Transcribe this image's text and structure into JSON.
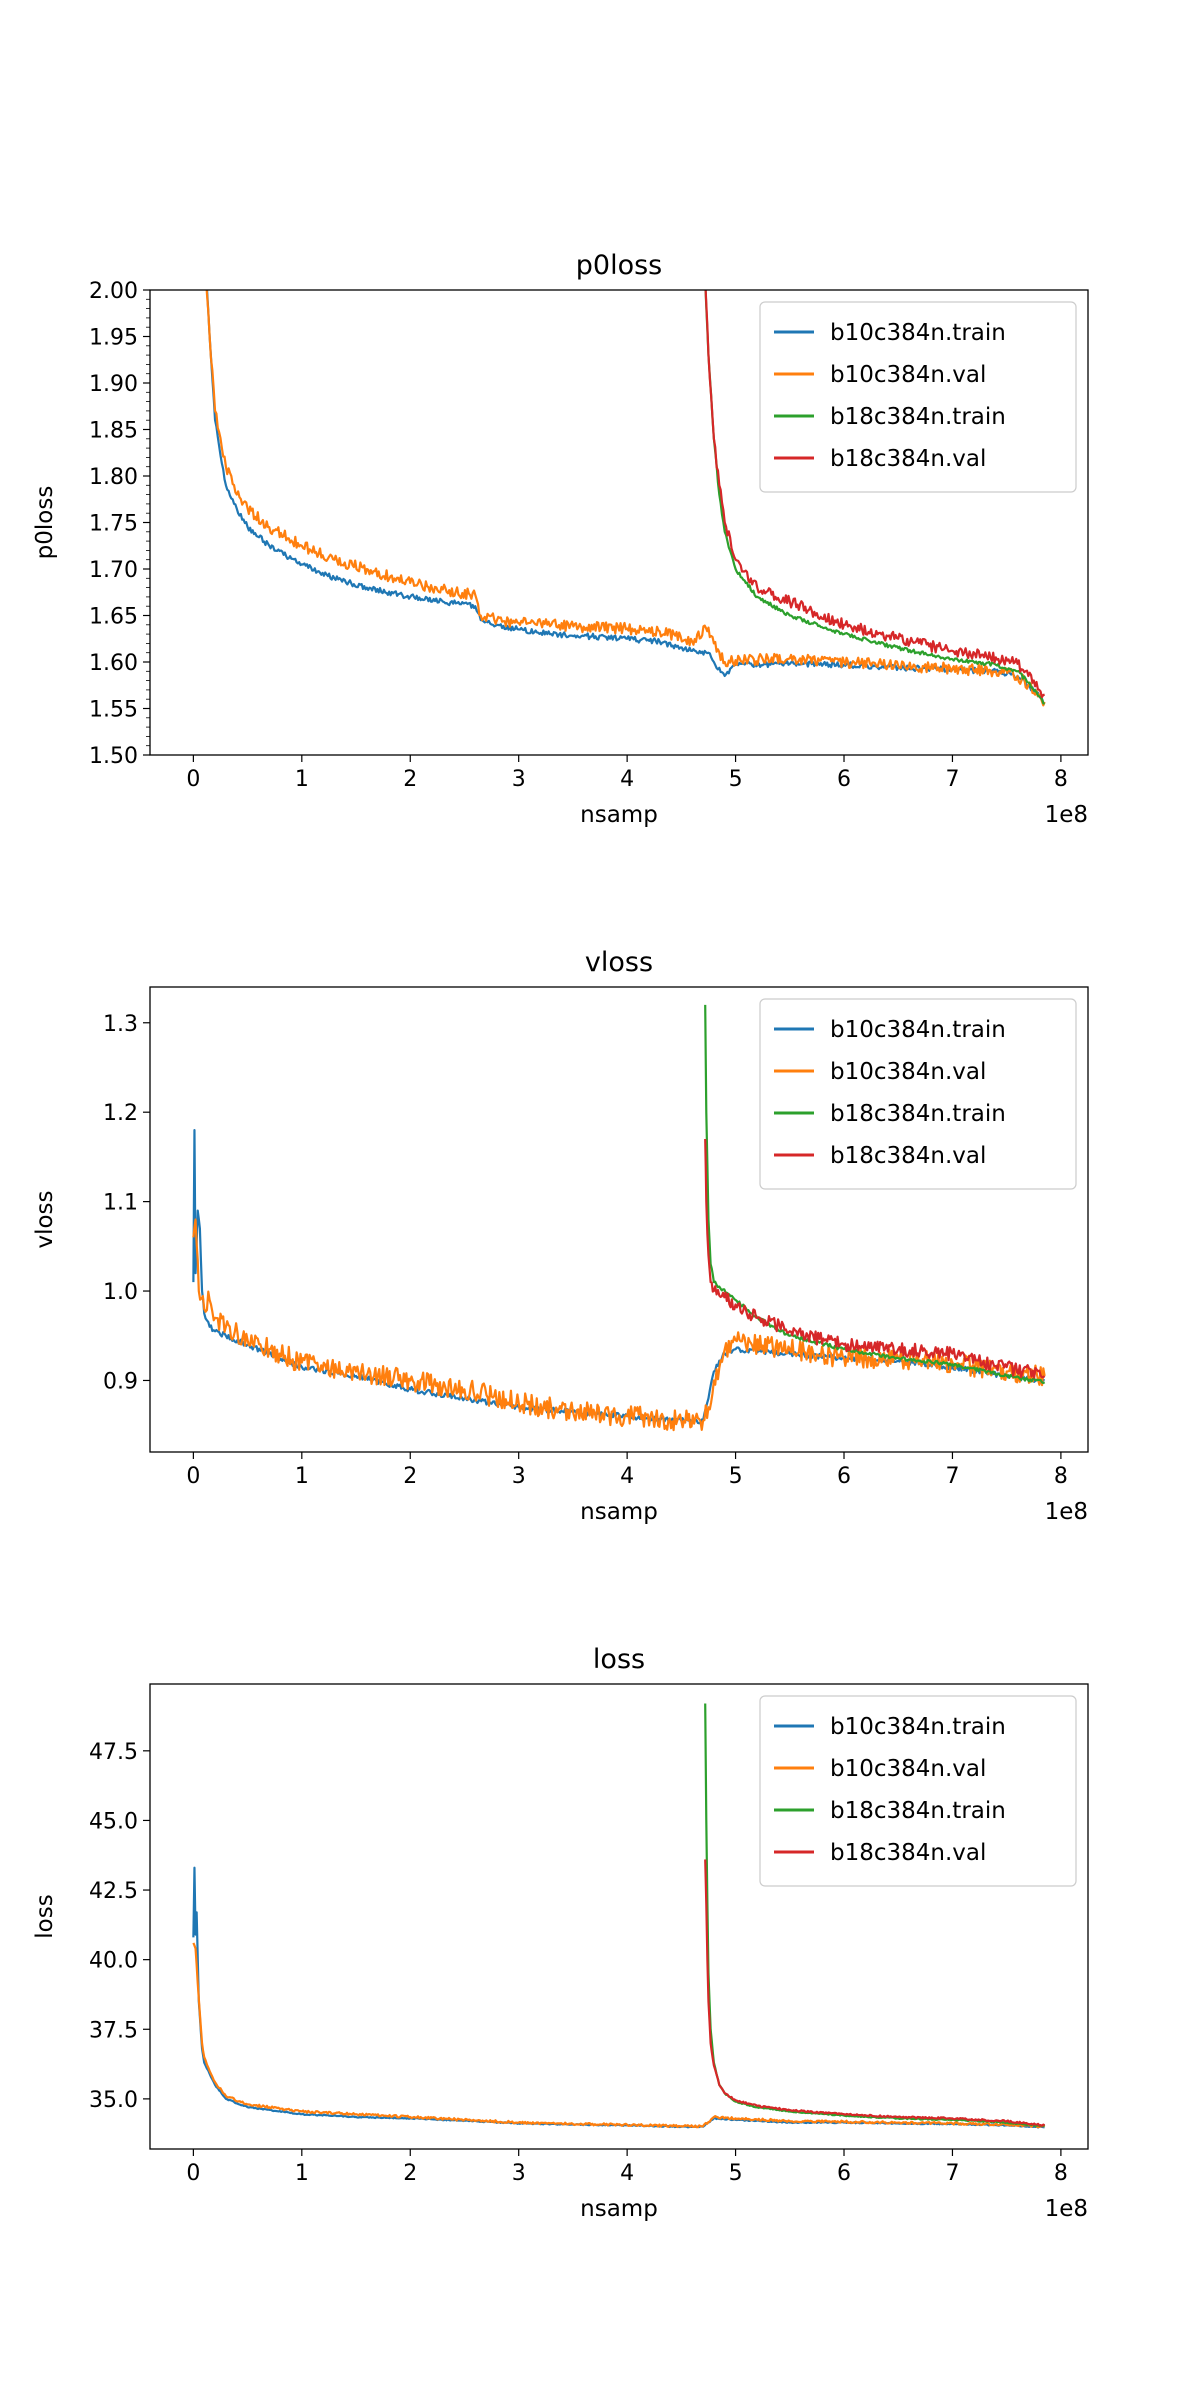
{
  "colors": {
    "b10c384n_train": "#1f77b4",
    "b10c384n_val": "#ff7f0e",
    "b18c384n_train": "#2ca02c",
    "b18c384n_val": "#d62728"
  },
  "chart_data": [
    {
      "type": "line",
      "title": "p0loss",
      "xlabel": "nsamp",
      "ylabel": "p0loss",
      "x_offset_text": "1e8",
      "xlim": [
        -0.4,
        8.25
      ],
      "ylim": [
        1.5,
        2.0
      ],
      "xticks": [
        0,
        1,
        2,
        3,
        4,
        5,
        6,
        7,
        8
      ],
      "yticks": [
        1.5,
        1.55,
        1.6,
        1.65,
        1.7,
        1.75,
        1.8,
        1.85,
        1.9,
        1.95,
        2.0
      ],
      "ytick_labels": [
        "1.50",
        "1.55",
        "1.60",
        "1.65",
        "1.70",
        "1.75",
        "1.80",
        "1.85",
        "1.90",
        "1.95",
        "2.00"
      ],
      "legend": "top-right",
      "grid": false,
      "series": [
        {
          "name": "b10c384n.train",
          "color_key": "b10c384n_train",
          "noise": 0.003,
          "x": [
            0.1,
            0.15,
            0.2,
            0.3,
            0.4,
            0.5,
            0.7,
            1.0,
            1.3,
            1.6,
            2.0,
            2.3,
            2.6,
            2.65,
            2.8,
            3.0,
            3.3,
            3.6,
            4.0,
            4.3,
            4.6,
            4.75,
            4.8,
            4.9,
            5.0,
            5.5,
            6.0,
            6.5,
            7.0,
            7.4,
            7.6,
            7.7,
            7.8,
            7.85
          ],
          "y": [
            2.05,
            1.95,
            1.86,
            1.79,
            1.765,
            1.745,
            1.725,
            1.705,
            1.69,
            1.68,
            1.67,
            1.665,
            1.66,
            1.645,
            1.64,
            1.635,
            1.63,
            1.628,
            1.625,
            1.622,
            1.612,
            1.61,
            1.6,
            1.585,
            1.597,
            1.598,
            1.597,
            1.594,
            1.592,
            1.59,
            1.585,
            1.575,
            1.563,
            1.555
          ]
        },
        {
          "name": "b10c384n.val",
          "color_key": "b10c384n_val",
          "noise": 0.006,
          "x": [
            0.1,
            0.15,
            0.2,
            0.3,
            0.4,
            0.5,
            0.7,
            1.0,
            1.3,
            1.6,
            2.0,
            2.3,
            2.6,
            2.65,
            2.8,
            3.0,
            3.3,
            3.6,
            4.0,
            4.3,
            4.6,
            4.75,
            4.8,
            4.9,
            5.0,
            5.5,
            6.0,
            6.5,
            7.0,
            7.4,
            7.6,
            7.7,
            7.8,
            7.85
          ],
          "y": [
            2.05,
            1.95,
            1.87,
            1.81,
            1.78,
            1.765,
            1.745,
            1.725,
            1.71,
            1.7,
            1.685,
            1.678,
            1.672,
            1.65,
            1.645,
            1.642,
            1.64,
            1.638,
            1.636,
            1.633,
            1.622,
            1.637,
            1.62,
            1.6,
            1.602,
            1.604,
            1.6,
            1.596,
            1.593,
            1.59,
            1.585,
            1.575,
            1.565,
            1.557
          ]
        },
        {
          "name": "b18c384n.train",
          "color_key": "b18c384n_train",
          "noise": 0.002,
          "x": [
            4.72,
            4.75,
            4.8,
            4.85,
            4.9,
            5.0,
            5.2,
            5.5,
            6.0,
            6.5,
            7.0,
            7.4,
            7.6,
            7.7,
            7.8,
            7.85
          ],
          "y": [
            2.01,
            1.93,
            1.84,
            1.78,
            1.74,
            1.7,
            1.67,
            1.65,
            1.63,
            1.615,
            1.603,
            1.597,
            1.59,
            1.578,
            1.563,
            1.555
          ]
        },
        {
          "name": "b18c384n.val",
          "color_key": "b18c384n_val",
          "noise": 0.006,
          "x": [
            4.72,
            4.75,
            4.8,
            4.85,
            4.9,
            5.0,
            5.2,
            5.5,
            6.0,
            6.5,
            7.0,
            7.4,
            7.6,
            7.7,
            7.8,
            7.85
          ],
          "y": [
            2.01,
            1.93,
            1.84,
            1.79,
            1.75,
            1.71,
            1.68,
            1.665,
            1.64,
            1.625,
            1.612,
            1.605,
            1.598,
            1.585,
            1.57,
            1.565
          ]
        }
      ]
    },
    {
      "type": "line",
      "title": "vloss",
      "xlabel": "nsamp",
      "ylabel": "vloss",
      "x_offset_text": "1e8",
      "xlim": [
        -0.4,
        8.25
      ],
      "ylim": [
        0.82,
        1.34
      ],
      "xticks": [
        0,
        1,
        2,
        3,
        4,
        5,
        6,
        7,
        8
      ],
      "yticks": [
        0.9,
        1.0,
        1.1,
        1.2,
        1.3
      ],
      "ytick_labels": [
        "0.9",
        "1.0",
        "1.1",
        "1.2",
        "1.3"
      ],
      "legend": "top-right",
      "grid": false,
      "series": [
        {
          "name": "b10c384n.train",
          "color_key": "b10c384n_train",
          "noise": 0.003,
          "x": [
            0.0,
            0.01,
            0.02,
            0.04,
            0.06,
            0.08,
            0.1,
            0.15,
            0.2,
            0.3,
            0.5,
            0.7,
            1.0,
            1.5,
            2.0,
            2.5,
            3.0,
            3.5,
            4.0,
            4.5,
            4.7,
            4.75,
            4.8,
            4.9,
            5.0,
            5.5,
            6.0,
            6.5,
            7.0,
            7.5,
            7.85
          ],
          "y": [
            1.01,
            1.18,
            1.02,
            1.09,
            1.07,
            1.0,
            0.975,
            0.96,
            0.955,
            0.95,
            0.94,
            0.93,
            0.915,
            0.905,
            0.89,
            0.88,
            0.87,
            0.865,
            0.86,
            0.855,
            0.855,
            0.88,
            0.91,
            0.93,
            0.935,
            0.93,
            0.925,
            0.922,
            0.915,
            0.905,
            0.9
          ]
        },
        {
          "name": "b10c384n.val",
          "color_key": "b10c384n_val",
          "noise": 0.012,
          "x": [
            0.0,
            0.02,
            0.05,
            0.1,
            0.15,
            0.2,
            0.3,
            0.5,
            0.7,
            1.0,
            1.5,
            2.0,
            2.5,
            3.0,
            3.5,
            4.0,
            4.5,
            4.7,
            4.75,
            4.8,
            4.9,
            5.0,
            5.5,
            6.0,
            6.5,
            7.0,
            7.5,
            7.85
          ],
          "y": [
            1.06,
            1.08,
            1.0,
            0.98,
            0.99,
            0.97,
            0.96,
            0.945,
            0.935,
            0.92,
            0.91,
            0.9,
            0.89,
            0.875,
            0.865,
            0.86,
            0.855,
            0.855,
            0.87,
            0.9,
            0.935,
            0.945,
            0.935,
            0.925,
            0.925,
            0.92,
            0.91,
            0.905
          ]
        },
        {
          "name": "b18c384n.train",
          "color_key": "b18c384n_train",
          "noise": 0.002,
          "x": [
            4.72,
            4.73,
            4.75,
            4.77,
            4.8,
            4.85,
            5.0,
            5.2,
            5.5,
            6.0,
            6.5,
            7.0,
            7.5,
            7.85
          ],
          "y": [
            1.32,
            1.2,
            1.08,
            1.03,
            1.01,
            1.005,
            0.99,
            0.97,
            0.95,
            0.935,
            0.925,
            0.918,
            0.905,
            0.898
          ]
        },
        {
          "name": "b18c384n.val",
          "color_key": "b18c384n_val",
          "noise": 0.008,
          "x": [
            4.72,
            4.73,
            4.75,
            4.77,
            4.8,
            4.85,
            5.0,
            5.2,
            5.5,
            6.0,
            6.5,
            7.0,
            7.5,
            7.85
          ],
          "y": [
            1.17,
            1.1,
            1.04,
            1.01,
            1.0,
            0.995,
            0.985,
            0.97,
            0.955,
            0.94,
            0.935,
            0.93,
            0.915,
            0.905
          ]
        }
      ]
    },
    {
      "type": "line",
      "title": "loss",
      "xlabel": "nsamp",
      "ylabel": "loss",
      "x_offset_text": "1e8",
      "xlim": [
        -0.4,
        8.25
      ],
      "ylim": [
        33.2,
        49.9
      ],
      "xticks": [
        0,
        1,
        2,
        3,
        4,
        5,
        6,
        7,
        8
      ],
      "yticks": [
        35.0,
        37.5,
        40.0,
        42.5,
        45.0,
        47.5
      ],
      "ytick_labels": [
        "35.0",
        "37.5",
        "40.0",
        "42.5",
        "45.0",
        "47.5"
      ],
      "legend": "top-right",
      "grid": false,
      "series": [
        {
          "name": "b10c384n.train",
          "color_key": "b10c384n_train",
          "noise": 0.02,
          "x": [
            0.0,
            0.01,
            0.02,
            0.03,
            0.05,
            0.08,
            0.1,
            0.15,
            0.2,
            0.3,
            0.5,
            1.0,
            1.5,
            2.0,
            2.5,
            3.0,
            3.5,
            4.0,
            4.5,
            4.7,
            4.75,
            4.8,
            5.0,
            5.5,
            6.0,
            6.5,
            7.0,
            7.5,
            7.85
          ],
          "y": [
            40.8,
            43.3,
            40.9,
            41.7,
            38.5,
            36.8,
            36.3,
            35.9,
            35.5,
            35.0,
            34.7,
            34.45,
            34.35,
            34.3,
            34.22,
            34.12,
            34.08,
            34.05,
            34.0,
            34.0,
            34.15,
            34.3,
            34.25,
            34.15,
            34.15,
            34.12,
            34.1,
            34.05,
            33.98
          ]
        },
        {
          "name": "b10c384n.val",
          "color_key": "b10c384n_val",
          "noise": 0.04,
          "x": [
            0.0,
            0.02,
            0.05,
            0.08,
            0.1,
            0.15,
            0.2,
            0.3,
            0.5,
            1.0,
            1.5,
            2.0,
            2.5,
            3.0,
            3.5,
            4.0,
            4.5,
            4.7,
            4.75,
            4.8,
            5.0,
            5.5,
            6.0,
            6.5,
            7.0,
            7.5,
            7.85
          ],
          "y": [
            40.6,
            40.4,
            38.6,
            37.0,
            36.5,
            36.0,
            35.6,
            35.1,
            34.8,
            34.55,
            34.45,
            34.35,
            34.25,
            34.15,
            34.1,
            34.07,
            34.02,
            34.02,
            34.17,
            34.35,
            34.3,
            34.2,
            34.18,
            34.15,
            34.12,
            34.08,
            34.0
          ]
        },
        {
          "name": "b18c384n.train",
          "color_key": "b18c384n_train",
          "noise": 0.02,
          "x": [
            4.72,
            4.73,
            4.74,
            4.75,
            4.77,
            4.8,
            4.85,
            4.9,
            5.0,
            5.2,
            5.5,
            6.0,
            6.5,
            7.0,
            7.5,
            7.85
          ],
          "y": [
            49.2,
            45.0,
            42.0,
            39.5,
            37.5,
            36.3,
            35.5,
            35.2,
            34.9,
            34.7,
            34.55,
            34.4,
            34.3,
            34.25,
            34.15,
            34.02
          ]
        },
        {
          "name": "b18c384n.val",
          "color_key": "b18c384n_val",
          "noise": 0.03,
          "x": [
            4.72,
            4.73,
            4.74,
            4.75,
            4.77,
            4.8,
            4.85,
            4.9,
            5.0,
            5.2,
            5.5,
            6.0,
            6.5,
            7.0,
            7.5,
            7.85
          ],
          "y": [
            43.6,
            42.0,
            40.0,
            38.5,
            37.0,
            36.2,
            35.5,
            35.2,
            34.95,
            34.75,
            34.6,
            34.45,
            34.35,
            34.3,
            34.2,
            34.05
          ]
        }
      ]
    }
  ]
}
